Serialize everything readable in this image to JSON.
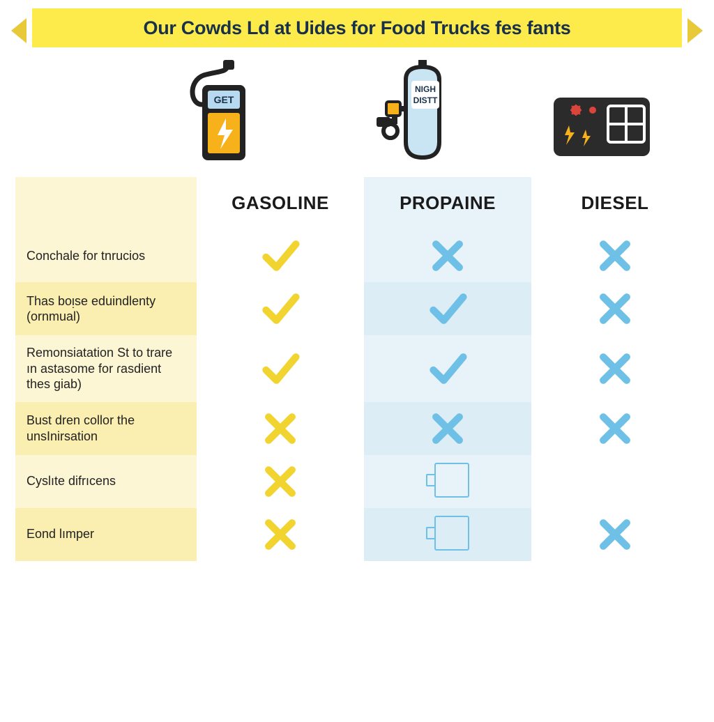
{
  "banner": {
    "text": "Our Cowds Ld at Uides for Food Trucks fes fants",
    "bg_color": "#fceb4b",
    "text_color": "#18304a",
    "tail_color": "#e8c93a"
  },
  "icons": {
    "gasoline": {
      "label": "GET"
    },
    "propane": {
      "label_top": "NIGH",
      "label_bot": "DISTT"
    }
  },
  "columns": [
    {
      "key": "label",
      "header": ""
    },
    {
      "key": "gasoline",
      "header": "GASOLINE"
    },
    {
      "key": "propane",
      "header": "PROPAINE"
    },
    {
      "key": "diesel",
      "header": "DIESEL"
    }
  ],
  "col_bg": {
    "label": {
      "header": "#fdf6d4",
      "odd": "#fdf6d4",
      "even": "#faeeb0"
    },
    "gasoline": {
      "header": "#ffffff",
      "odd": "#ffffff",
      "even": "#ffffff"
    },
    "propane": {
      "header": "#e8f3f9",
      "odd": "#e8f3f9",
      "even": "#dcedf6"
    },
    "diesel": {
      "header": "#ffffff",
      "odd": "#ffffff",
      "even": "#ffffff"
    }
  },
  "mark_colors": {
    "check_yellow": "#f2d431",
    "cross_yellow": "#f2d431",
    "check_blue": "#6fc0e6",
    "cross_blue": "#6fc0e6",
    "square_blue": "#6fc0e6"
  },
  "rows": [
    {
      "label": "Conchale for tnrucios",
      "gasoline": "check_yellow",
      "propane": "cross_blue",
      "diesel": "cross_blue"
    },
    {
      "label": "Thas boᴉse eduindlenty (ornmual)",
      "gasoline": "check_yellow",
      "propane": "check_blue",
      "diesel": "cross_blue"
    },
    {
      "label": "Remonsiatation St to trare ın astasome for ɾasdient thes giab)",
      "gasoline": "check_yellow",
      "propane": "check_blue",
      "diesel": "cross_blue"
    },
    {
      "label": "Bust dren collor the unsInirsation",
      "gasoline": "cross_yellow",
      "propane": "cross_blue",
      "diesel": "cross_blue"
    },
    {
      "label": "Cyslıte difrıcens",
      "gasoline": "cross_yellow",
      "propane": "square_blue",
      "diesel": ""
    },
    {
      "label": "Eond lımper",
      "gasoline": "cross_yellow",
      "propane": "square_blue",
      "diesel": "cross_blue"
    }
  ]
}
